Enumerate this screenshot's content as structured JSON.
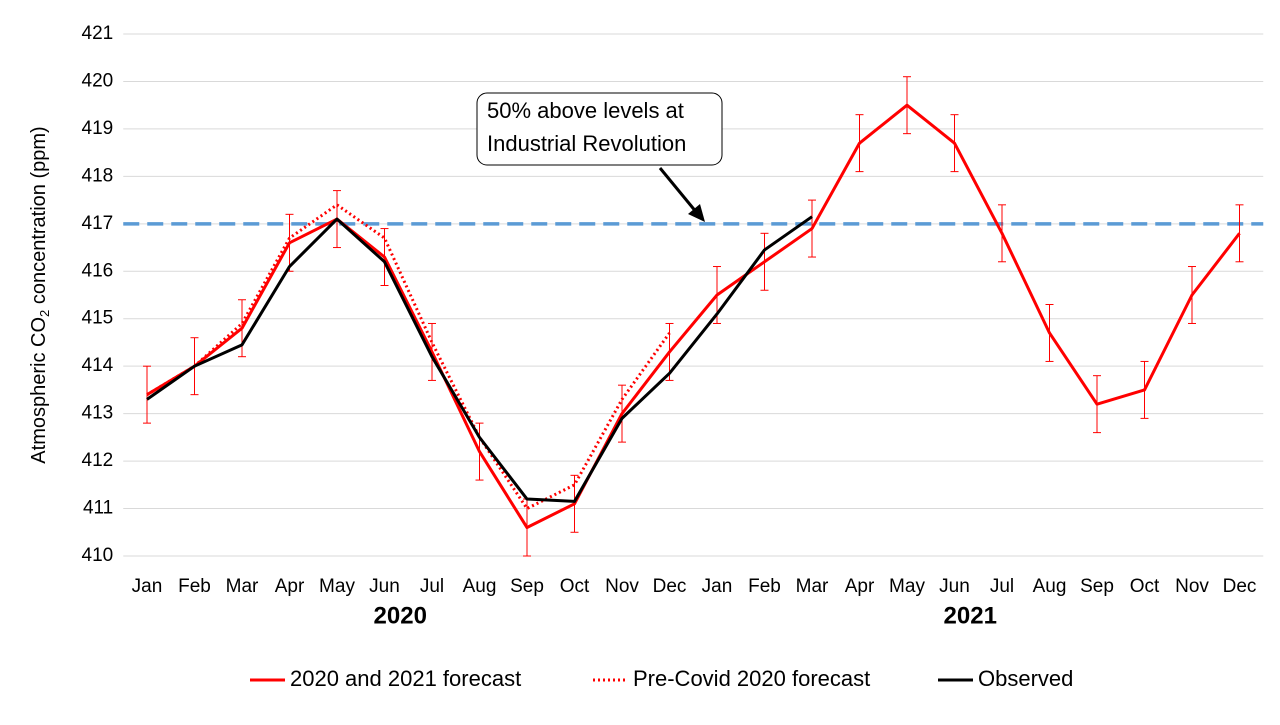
{
  "chart_data": {
    "type": "line",
    "y_label": [
      "Atmospheric CO",
      "2",
      " concentration (ppm)"
    ],
    "categories": [
      "Jan",
      "Feb",
      "Mar",
      "Apr",
      "May",
      "Jun",
      "Jul",
      "Aug",
      "Sep",
      "Oct",
      "Nov",
      "Dec",
      "Jan",
      "Feb",
      "Mar",
      "Apr",
      "May",
      "Jun",
      "Jul",
      "Aug",
      "Sep",
      "Oct",
      "Nov",
      "Dec"
    ],
    "groups": [
      {
        "label": "2020",
        "start": 0,
        "end": 11
      },
      {
        "label": "2021",
        "start": 12,
        "end": 23
      }
    ],
    "series": [
      {
        "name": "2020 and 2021 forecast",
        "color": "#ff0000",
        "dash": "solid",
        "values": [
          413.4,
          414.0,
          414.8,
          416.6,
          417.1,
          416.3,
          414.3,
          412.2,
          410.6,
          411.1,
          413.0,
          414.3,
          415.5,
          416.2,
          416.9,
          418.7,
          419.5,
          418.7,
          416.8,
          414.7,
          413.2,
          413.5,
          415.5,
          416.8
        ],
        "errors": [
          0.6,
          0.6,
          0.6,
          0.6,
          0.6,
          0.6,
          0.6,
          0.6,
          0.6,
          0.6,
          0.6,
          0.6,
          0.6,
          0.6,
          0.6,
          0.6,
          0.6,
          0.6,
          0.6,
          0.6,
          0.6,
          0.6,
          0.6,
          0.6
        ]
      },
      {
        "name": "Pre-Covid 2020 forecast",
        "color": "#ff0000",
        "dash": "dotted",
        "values": [
          413.4,
          414.0,
          414.9,
          416.7,
          417.4,
          416.7,
          414.5,
          412.5,
          411.0,
          411.5,
          413.3,
          414.7,
          null,
          null,
          null,
          null,
          null,
          null,
          null,
          null,
          null,
          null,
          null,
          null
        ]
      },
      {
        "name": "Observed",
        "color": "#000000",
        "dash": "solid",
        "values": [
          413.3,
          414.0,
          414.45,
          416.1,
          417.1,
          416.2,
          414.2,
          412.5,
          411.2,
          411.15,
          412.9,
          413.85,
          415.1,
          416.45,
          417.15,
          null,
          null,
          null,
          null,
          null,
          null,
          null,
          null,
          null
        ]
      }
    ],
    "reference_line": {
      "value": 417,
      "color": "#5b9bd5"
    },
    "annotation": [
      "50% above levels at",
      "Industrial Revolution"
    ],
    "ylim": [
      410,
      421
    ],
    "yticks": [
      410,
      411,
      412,
      413,
      414,
      415,
      416,
      417,
      418,
      419,
      420,
      421
    ],
    "grid": true
  }
}
